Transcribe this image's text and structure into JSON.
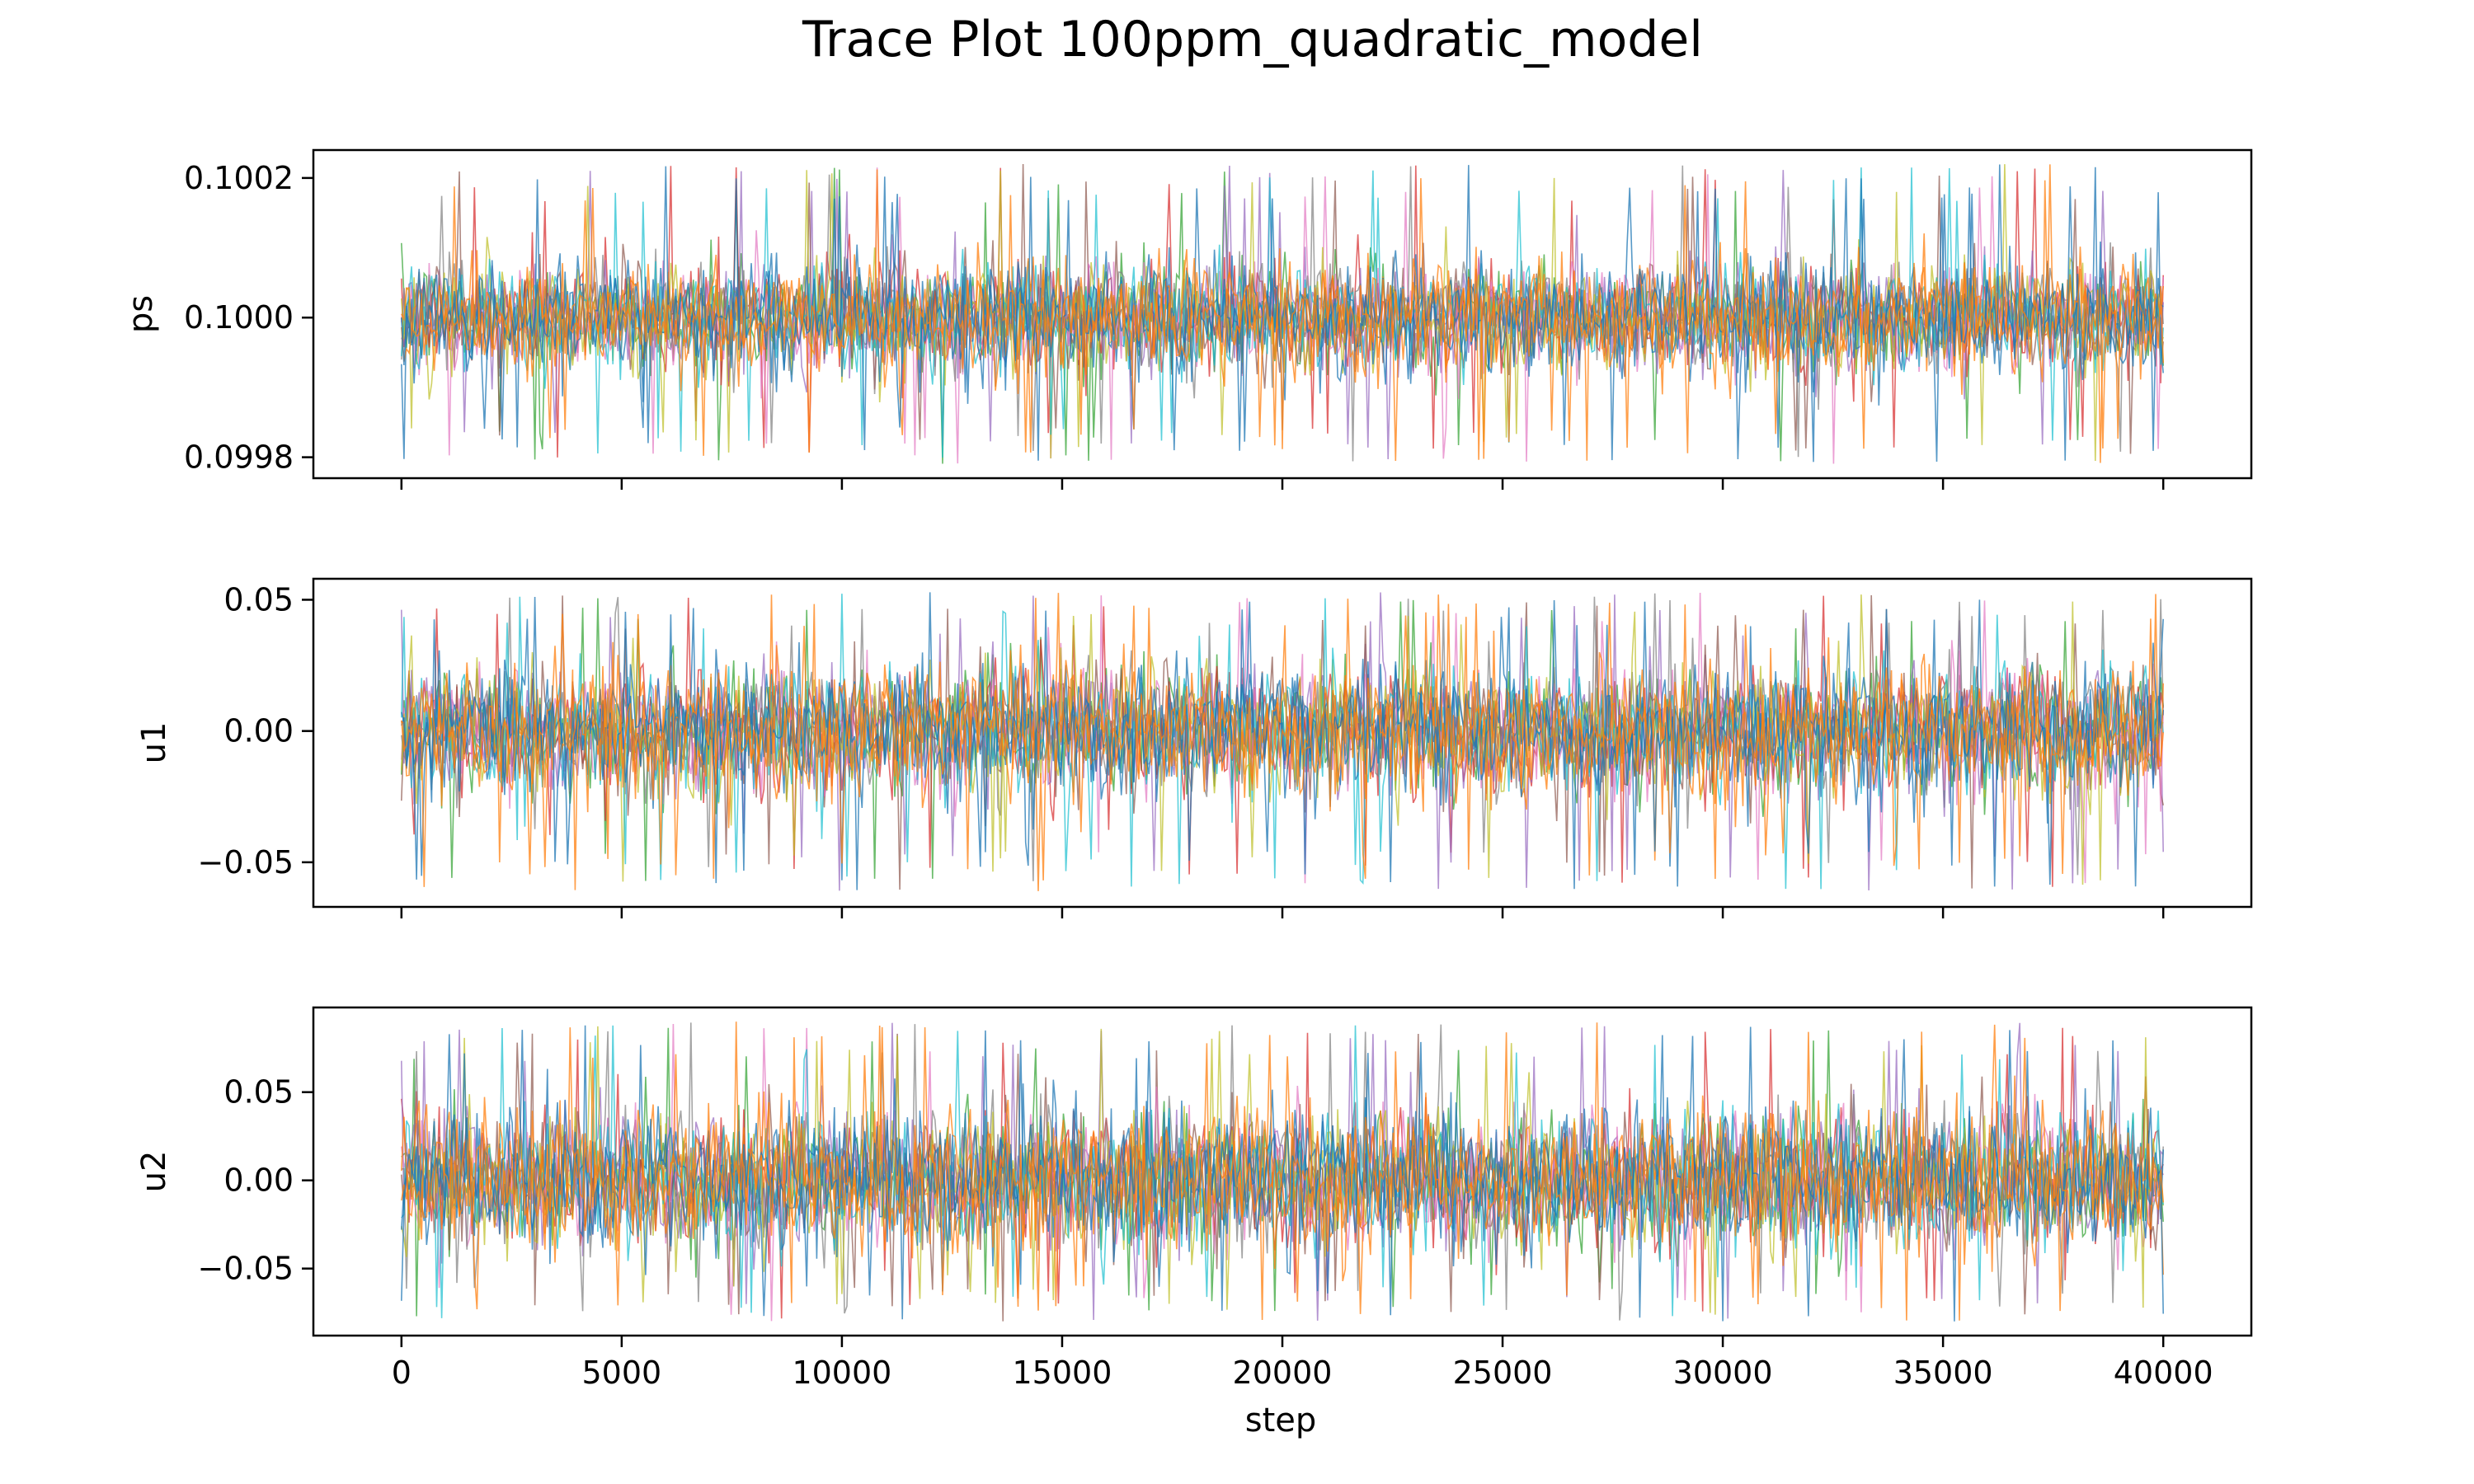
{
  "chart_data": {
    "type": "line",
    "title": "Trace Plot 100ppm_quadratic_model",
    "xlabel": "step",
    "xlim": [
      -2000,
      42000
    ],
    "xticks": [
      0,
      5000,
      10000,
      15000,
      20000,
      25000,
      30000,
      35000,
      40000
    ],
    "xtick_labels": [
      "0",
      "5000",
      "10000",
      "15000",
      "20000",
      "25000",
      "30000",
      "35000",
      "40000"
    ],
    "steps": [
      0,
      40000
    ],
    "series_colors": [
      "#1f77b4",
      "#ff7f0e",
      "#2ca02c",
      "#d62728",
      "#9467bd",
      "#8c564b",
      "#e377c2",
      "#7f7f7f",
      "#bcbd22",
      "#17becf"
    ],
    "panels": [
      {
        "ylabel": "ps",
        "ylim": [
          0.09977,
          0.10024
        ],
        "yticks": [
          0.0998,
          0.1,
          0.1002
        ],
        "ytick_labels": [
          "0.0998",
          "0.1000",
          "0.1002"
        ],
        "center": 0.1,
        "core_halfwidth": 7e-05,
        "spike_range": [
          0.09979,
          0.10022
        ]
      },
      {
        "ylabel": "u1",
        "ylim": [
          -0.067,
          0.058
        ],
        "yticks": [
          -0.05,
          0.0,
          0.05
        ],
        "ytick_labels": [
          "−0.05",
          "0.00",
          "0.05"
        ],
        "center": 0.0,
        "core_halfwidth": 0.022,
        "spike_range": [
          -0.061,
          0.053
        ]
      },
      {
        "ylabel": "u2",
        "ylim": [
          -0.088,
          0.098
        ],
        "yticks": [
          -0.05,
          0.0,
          0.05
        ],
        "ytick_labels": [
          "−0.05",
          "0.00",
          "0.05"
        ],
        "center": 0.0,
        "core_halfwidth": 0.035,
        "spike_range": [
          -0.08,
          0.09
        ]
      }
    ]
  }
}
